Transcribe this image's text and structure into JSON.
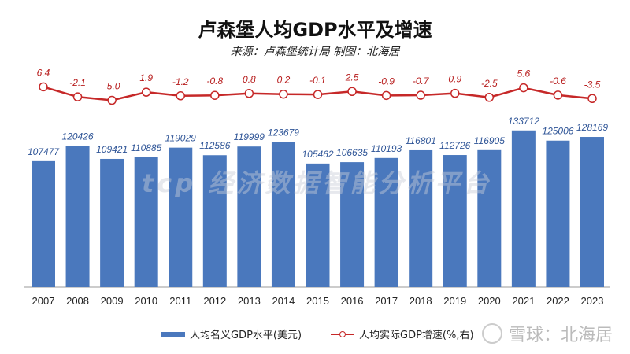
{
  "title": "卢森堡人均GDP水平及增速",
  "subtitle": "来源：卢森堡统计局 制图：北海居",
  "watermark": "tcp 经济数据智能分析平台",
  "credit": "雪球：北海居",
  "chart_data": {
    "type": "bar+line",
    "categories": [
      "2007",
      "2008",
      "2009",
      "2010",
      "2011",
      "2012",
      "2013",
      "2014",
      "2015",
      "2016",
      "2017",
      "2018",
      "2019",
      "2020",
      "2021",
      "2022",
      "2023"
    ],
    "series": [
      {
        "name": "人均名义GDP水平(美元)",
        "type": "bar",
        "color": "#4A78BD",
        "values": [
          107477,
          120426,
          109421,
          110885,
          119029,
          112586,
          119999,
          123679,
          105462,
          106635,
          110193,
          116801,
          112726,
          116905,
          133712,
          125006,
          128169
        ]
      },
      {
        "name": "人均实际GDP增速(%,右)",
        "type": "line",
        "color": "#C62828",
        "values": [
          6.4,
          -2.1,
          -5.0,
          1.9,
          -1.2,
          -0.8,
          0.8,
          0.2,
          -0.1,
          2.5,
          -0.9,
          -0.7,
          0.9,
          -2.5,
          5.6,
          -0.6,
          -3.5
        ]
      }
    ],
    "legend": "bottom",
    "grid": false
  }
}
